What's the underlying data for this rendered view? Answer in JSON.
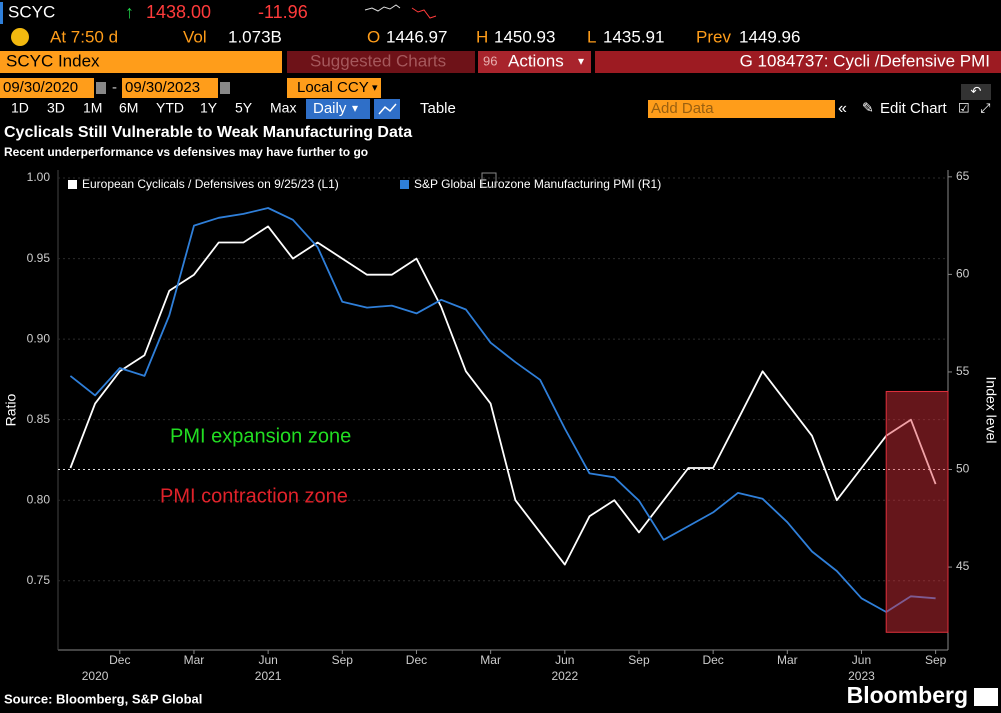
{
  "header": {
    "ticker": "SCYC",
    "price": "1438.00",
    "change": "-11.96",
    "time": "At 7:50 d",
    "vol_label": "Vol",
    "vol": "1.073B",
    "open_label": "O",
    "open": "1446.97",
    "high_label": "H",
    "high": "1450.93",
    "low_label": "L",
    "low": "1435.91",
    "prev_label": "Prev",
    "prev": "1449.96"
  },
  "toolbar": {
    "security": "SCYC Index",
    "suggested": "Suggested Charts",
    "actions_num": "96",
    "actions": "Actions",
    "chart_id": "G 1084737: Cycli /Defensive PMI",
    "start_date": "09/30/2020",
    "date_sep": "-",
    "end_date": "09/30/2023",
    "currency": "Local CCY",
    "ranges": [
      "1D",
      "3D",
      "1M",
      "6M",
      "YTD",
      "1Y",
      "5Y",
      "Max"
    ],
    "frequency": "Daily",
    "table": "Table",
    "add_data": "Add Data",
    "edit_chart": "Edit Chart"
  },
  "chart_data": {
    "type": "line",
    "title": "Cyclicals Still Vulnerable to Weak Manufacturing Data",
    "subtitle": "Recent underperformance vs defensives may have further to go",
    "y_label": "Ratio",
    "y2_label": "Index level",
    "source": "Source: Bloomberg, S&P Global",
    "brand": "Bloomberg",
    "x": [
      "2020-10",
      "2020-11",
      "2020-12",
      "2021-01",
      "2021-02",
      "2021-03",
      "2021-04",
      "2021-05",
      "2021-06",
      "2021-07",
      "2021-08",
      "2021-09",
      "2021-10",
      "2021-11",
      "2021-12",
      "2022-01",
      "2022-02",
      "2022-03",
      "2022-04",
      "2022-05",
      "2022-06",
      "2022-07",
      "2022-08",
      "2022-09",
      "2022-10",
      "2022-11",
      "2022-12",
      "2023-01",
      "2023-02",
      "2023-03",
      "2023-04",
      "2023-05",
      "2023-06",
      "2023-07",
      "2023-08",
      "2023-09"
    ],
    "xticks": [
      {
        "value": "2020-12",
        "label": "Dec"
      },
      {
        "value": "2021-03",
        "label": "Mar"
      },
      {
        "value": "2021-06",
        "label": "Jun"
      },
      {
        "value": "2021-09",
        "label": "Sep"
      },
      {
        "value": "2021-12",
        "label": "Dec"
      },
      {
        "value": "2022-03",
        "label": "Mar"
      },
      {
        "value": "2022-06",
        "label": "Jun"
      },
      {
        "value": "2022-09",
        "label": "Sep"
      },
      {
        "value": "2022-12",
        "label": "Dec"
      },
      {
        "value": "2023-03",
        "label": "Mar"
      },
      {
        "value": "2023-06",
        "label": "Jun"
      },
      {
        "value": "2023-09",
        "label": "Sep"
      }
    ],
    "year_labels": [
      {
        "value": "2020-11",
        "label": "2020"
      },
      {
        "value": "2021-06",
        "label": "2021"
      },
      {
        "value": "2022-06",
        "label": "2022"
      },
      {
        "value": "2023-06",
        "label": "2023"
      }
    ],
    "ylim": [
      0.707,
      1.005
    ],
    "yticks": [
      {
        "value": 0.8,
        "label": "0.80"
      },
      0.75,
      0.85,
      {
        "value": 0.9,
        "label": "0.90"
      },
      0.95,
      {
        "value": 1.0,
        "label": "1.00"
      }
    ],
    "y2lim": [
      40.75,
      65.35
    ],
    "y2ticks": [
      45,
      50,
      55,
      60,
      65
    ],
    "grid": true,
    "series": [
      {
        "name": "European Cyclicals / Defensives on 9/25/23 (L1)",
        "color": "#ffffff",
        "axis": "y",
        "values": [
          0.82,
          0.86,
          0.88,
          0.89,
          0.93,
          0.94,
          0.96,
          0.96,
          0.97,
          0.95,
          0.96,
          0.95,
          0.94,
          0.94,
          0.95,
          0.92,
          0.88,
          0.86,
          0.8,
          0.78,
          0.76,
          0.79,
          0.8,
          0.78,
          0.8,
          0.82,
          0.82,
          0.85,
          0.88,
          0.86,
          0.84,
          0.8,
          0.82,
          0.84,
          0.85,
          0.81
        ]
      },
      {
        "name": "S&P Global Eurozone Manufacturing PMI (R1)",
        "color": "#2f7fd9",
        "axis": "y2",
        "values": [
          54.8,
          53.8,
          55.2,
          54.8,
          57.9,
          62.5,
          62.9,
          63.1,
          63.4,
          62.8,
          61.4,
          58.6,
          58.3,
          58.4,
          58.0,
          58.7,
          58.2,
          56.5,
          55.5,
          54.6,
          52.1,
          49.8,
          49.6,
          48.4,
          46.4,
          47.1,
          47.8,
          48.8,
          48.5,
          47.3,
          45.8,
          44.8,
          43.4,
          42.7,
          43.5,
          43.4
        ]
      }
    ],
    "reference_line": {
      "axis": "y2",
      "value": 50
    },
    "highlight": {
      "x": [
        "2023-08",
        "2023-09"
      ],
      "ylim": [
        0.718,
        0.8675
      ],
      "color": "#e0303c"
    },
    "annotations": [
      {
        "text": "PMI expansion zone",
        "color": "#22dd22"
      },
      {
        "text": "PMI contraction zone",
        "color": "#e0222a"
      }
    ]
  }
}
